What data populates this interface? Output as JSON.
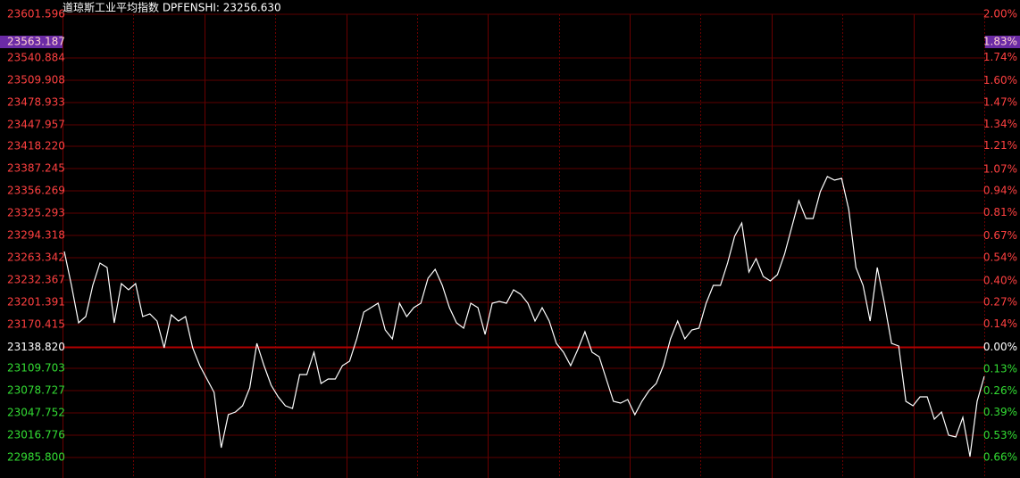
{
  "chart_data": {
    "type": "line",
    "title": "道琼斯工业平均指数 DPFENSHI: 23256.630",
    "series": [
      {
        "name": "DPFENSHI",
        "color": "#ffffff",
        "values": [
          23272.0,
          23224.9,
          23172.9,
          23181.6,
          23224.9,
          23255.9,
          23249.7,
          23172.9,
          23227.4,
          23218.7,
          23227.4,
          23181.6,
          23185.3,
          23175.4,
          23138.2,
          23184.0,
          23175.4,
          23181.6,
          23138.2,
          23113.4,
          23094.8,
          23076.2,
          22999.4,
          23045.3,
          23049.0,
          23057.7,
          23082.4,
          23144.4,
          23113.4,
          23086.2,
          23070.0,
          23057.7,
          23053.9,
          23101.0,
          23101.0,
          23132.0,
          23088.6,
          23094.8,
          23094.8,
          23113.4,
          23119.6,
          23150.6,
          23187.7,
          23193.9,
          23200.1,
          23163.0,
          23150.6,
          23200.1,
          23181.6,
          23193.9,
          23200.1,
          23234.8,
          23247.2,
          23224.9,
          23193.9,
          23172.9,
          23165.4,
          23200.1,
          23193.9,
          23156.8,
          23200.1,
          23202.6,
          23200.1,
          23218.7,
          23212.5,
          23200.1,
          23175.4,
          23193.9,
          23175.4,
          23144.4,
          23132.0,
          23113.4,
          23135.7,
          23160.5,
          23132.0,
          23125.8,
          23094.8,
          23063.8,
          23061.4,
          23066.3,
          23045.3,
          23063.8,
          23078.7,
          23088.6,
          23113.4,
          23150.6,
          23175.4,
          23150.6,
          23163.0,
          23165.4,
          23200.1,
          23224.9,
          23224.9,
          23255.9,
          23293.1,
          23311.6,
          23243.5,
          23262.1,
          23237.3,
          23231.1,
          23239.8,
          23268.3,
          23305.5,
          23342.6,
          23317.8,
          23317.8,
          23355.0,
          23376.1,
          23371.1,
          23373.6,
          23330.2,
          23249.7,
          23224.9,
          23175.4,
          23249.7,
          23200.1,
          23144.4,
          23140.7,
          23063.8,
          23057.7,
          23070.0,
          23070.0,
          23039.1,
          23049.0,
          23016.8,
          23014.3,
          23041.5,
          22987.0,
          23063.8,
          23098.5
        ]
      }
    ],
    "ylim": [
      22985.8,
      23601.596
    ],
    "yticks": [
      23601.596,
      23540.884,
      23509.908,
      23478.933,
      23447.957,
      {
        "value": 23418.22,
        "label": "23418.220"
      },
      23387.245,
      23356.269,
      23325.293,
      23294.318,
      23263.342,
      23232.367,
      23201.391,
      23170.415,
      {
        "value": 23138.82,
        "label": "23138.820"
      },
      23109.703,
      23078.727,
      23047.752,
      23016.776,
      {
        "value": 22985.8,
        "label": "22985.800"
      }
    ],
    "y2lim": [
      -0.66,
      2.0
    ],
    "y2ticks": [
      {
        "value": 2.0,
        "label": "2.00%"
      },
      {
        "value": 1.74,
        "label": "1.74%"
      },
      {
        "value": 1.6,
        "label": "1.60%"
      },
      {
        "value": 1.47,
        "label": "1.47%"
      },
      {
        "value": 1.34,
        "label": "1.34%"
      },
      {
        "value": 1.21,
        "label": "1.21%"
      },
      {
        "value": 1.07,
        "label": "1.07%"
      },
      {
        "value": 0.94,
        "label": "0.94%"
      },
      {
        "value": 0.81,
        "label": "0.81%"
      },
      {
        "value": 0.67,
        "label": "0.67%"
      },
      {
        "value": 0.54,
        "label": "0.54%"
      },
      {
        "value": 0.4,
        "label": "0.40%"
      },
      {
        "value": 0.27,
        "label": "0.27%"
      },
      {
        "value": 0.14,
        "label": "0.14%"
      },
      {
        "value": 0,
        "label": "0.00%"
      },
      {
        "value": -0.13,
        "label": "0.13%"
      },
      {
        "value": -0.26,
        "label": "0.26%"
      },
      {
        "value": -0.39,
        "label": "0.39%"
      },
      {
        "value": -0.53,
        "label": "0.53%"
      },
      {
        "value": -0.66,
        "label": "0.66%"
      }
    ],
    "cursor": {
      "value": 23563.187,
      "label": "1.83%"
    },
    "grid": true
  }
}
